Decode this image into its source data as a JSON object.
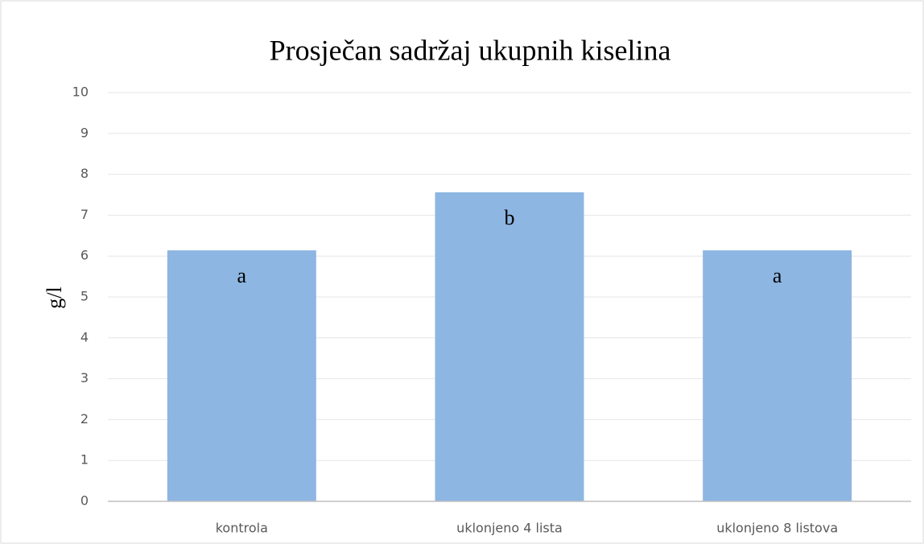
{
  "chart_data": {
    "type": "bar",
    "title": "Prosječan sadržaj ukupnih kiselina",
    "y_label": "g/l",
    "categories": [
      "kontrola",
      "uklonjeno 4 lista",
      "uklonjeno 8 listova"
    ],
    "values": [
      6.14,
      7.56,
      6.14
    ],
    "annotations": [
      "a",
      "b",
      "a"
    ],
    "color": "#8db6e2",
    "ylim": [
      0,
      10
    ],
    "yticks": [
      0,
      1,
      2,
      3,
      4,
      5,
      6,
      7,
      8,
      9,
      10
    ],
    "grid": true
  }
}
